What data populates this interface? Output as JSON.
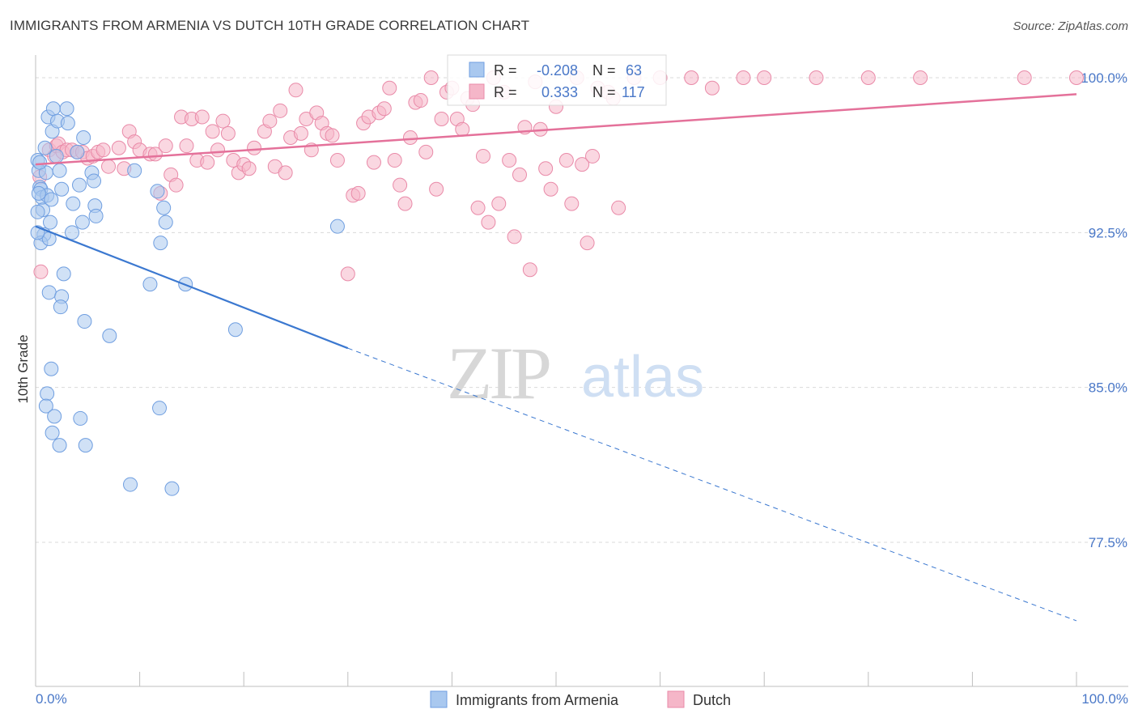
{
  "title": "IMMIGRANTS FROM ARMENIA VS DUTCH 10TH GRADE CORRELATION CHART",
  "source": "Source: ZipAtlas.com",
  "watermark": {
    "zip": "ZIP",
    "atlas": "atlas"
  },
  "colors": {
    "blue_fill": "#a9c8ef",
    "blue_stroke": "#6f9ee0",
    "blue_line": "#3b78d0",
    "pink_fill": "#f5b6c8",
    "pink_stroke": "#e98aa8",
    "pink_line": "#e4719a",
    "grid": "#d9d9d9",
    "tick_text": "#4a78c8"
  },
  "stats_legend": {
    "rows": [
      {
        "r_label": "R =",
        "r_value": "-0.208",
        "n_label": "N =",
        "n_value": "63"
      },
      {
        "r_label": "R =",
        "r_value": "0.333",
        "n_label": "N =",
        "n_value": "117"
      }
    ]
  },
  "chart_data": {
    "type": "scatter",
    "title": "IMMIGRANTS FROM ARMENIA VS DUTCH 10TH GRADE CORRELATION CHART",
    "xlabel": "",
    "ylabel": "10th Grade",
    "xlim": [
      0,
      100
    ],
    "ylim": [
      72.0,
      101.0
    ],
    "x_tick_labels": [
      "0.0%",
      "100.0%"
    ],
    "y_ticks": [
      77.5,
      85.0,
      92.5,
      100.0
    ],
    "y_tick_labels": [
      "77.5%",
      "85.0%",
      "92.5%",
      "100.0%"
    ],
    "grid": true,
    "legend_position": "bottom",
    "series": [
      {
        "name": "Immigrants from Armenia",
        "color": "#a9c8ef",
        "r": -0.208,
        "n": 63,
        "trend": {
          "x": [
            0,
            30
          ],
          "y": [
            92.8,
            86.9
          ],
          "dashed_to": {
            "x": 100,
            "y": 73.7
          }
        },
        "points": [
          [
            0.2,
            96.0
          ],
          [
            0.3,
            95.5
          ],
          [
            0.4,
            94.7
          ],
          [
            0.5,
            94.6
          ],
          [
            0.6,
            94.2
          ],
          [
            0.7,
            93.6
          ],
          [
            0.8,
            92.4
          ],
          [
            0.5,
            92.0
          ],
          [
            0.9,
            96.6
          ],
          [
            1.0,
            95.4
          ],
          [
            1.1,
            94.3
          ],
          [
            1.2,
            98.1
          ],
          [
            1.3,
            92.2
          ],
          [
            1.4,
            93.0
          ],
          [
            1.5,
            94.1
          ],
          [
            1.6,
            97.4
          ],
          [
            1.7,
            98.5
          ],
          [
            2.0,
            96.2
          ],
          [
            2.1,
            97.9
          ],
          [
            2.3,
            95.5
          ],
          [
            2.5,
            94.6
          ],
          [
            3.0,
            98.5
          ],
          [
            3.1,
            97.8
          ],
          [
            3.5,
            92.5
          ],
          [
            3.6,
            93.9
          ],
          [
            4.0,
            96.4
          ],
          [
            4.2,
            94.8
          ],
          [
            4.5,
            93.0
          ],
          [
            4.6,
            97.1
          ],
          [
            5.4,
            95.4
          ],
          [
            5.6,
            95.0
          ],
          [
            5.7,
            93.8
          ],
          [
            5.8,
            93.3
          ],
          [
            9.5,
            95.5
          ],
          [
            11.7,
            94.5
          ],
          [
            12.3,
            93.7
          ],
          [
            12.5,
            93.0
          ],
          [
            12.0,
            92.0
          ],
          [
            14.4,
            90.0
          ],
          [
            11.0,
            90.0
          ],
          [
            2.7,
            90.5
          ],
          [
            1.3,
            89.6
          ],
          [
            2.5,
            89.4
          ],
          [
            2.4,
            88.9
          ],
          [
            4.7,
            88.2
          ],
          [
            7.1,
            87.5
          ],
          [
            19.2,
            87.8
          ],
          [
            1.5,
            85.9
          ],
          [
            1.1,
            84.7
          ],
          [
            1.0,
            84.1
          ],
          [
            1.8,
            83.6
          ],
          [
            4.3,
            83.5
          ],
          [
            1.6,
            82.8
          ],
          [
            2.3,
            82.2
          ],
          [
            4.8,
            82.2
          ],
          [
            11.9,
            84.0
          ],
          [
            9.1,
            80.3
          ],
          [
            13.1,
            80.1
          ],
          [
            29.0,
            92.8
          ],
          [
            0.4,
            95.9
          ],
          [
            0.3,
            94.4
          ],
          [
            0.2,
            92.5
          ],
          [
            0.2,
            93.5
          ]
        ]
      },
      {
        "name": "Dutch",
        "color": "#f5b6c8",
        "r": 0.333,
        "n": 117,
        "trend": {
          "x": [
            0,
            100
          ],
          "y": [
            95.8,
            99.2
          ]
        },
        "points": [
          [
            0.5,
            90.6
          ],
          [
            0.4,
            95.2
          ],
          [
            1.3,
            96.5
          ],
          [
            1.8,
            96.2
          ],
          [
            2.0,
            96.7
          ],
          [
            2.2,
            96.8
          ],
          [
            2.6,
            96.4
          ],
          [
            3.0,
            96.5
          ],
          [
            3.5,
            96.5
          ],
          [
            4.0,
            96.4
          ],
          [
            4.5,
            96.4
          ],
          [
            5.0,
            96.1
          ],
          [
            5.5,
            96.2
          ],
          [
            6.0,
            96.4
          ],
          [
            6.5,
            96.5
          ],
          [
            7.0,
            95.7
          ],
          [
            8.0,
            96.6
          ],
          [
            8.5,
            95.6
          ],
          [
            9.0,
            97.4
          ],
          [
            9.5,
            96.9
          ],
          [
            10.0,
            96.5
          ],
          [
            11.0,
            96.3
          ],
          [
            11.5,
            96.3
          ],
          [
            12.0,
            94.4
          ],
          [
            12.5,
            96.7
          ],
          [
            13.0,
            95.3
          ],
          [
            13.5,
            94.8
          ],
          [
            14.0,
            98.1
          ],
          [
            14.5,
            96.7
          ],
          [
            15.0,
            98.0
          ],
          [
            15.5,
            96.0
          ],
          [
            16.0,
            98.1
          ],
          [
            16.5,
            95.9
          ],
          [
            17.0,
            97.4
          ],
          [
            17.5,
            96.5
          ],
          [
            18.0,
            97.9
          ],
          [
            18.5,
            97.3
          ],
          [
            19.0,
            96.0
          ],
          [
            19.5,
            95.4
          ],
          [
            20.0,
            95.8
          ],
          [
            20.5,
            95.6
          ],
          [
            21.0,
            96.6
          ],
          [
            22.0,
            97.4
          ],
          [
            22.5,
            97.9
          ],
          [
            23.0,
            95.7
          ],
          [
            23.5,
            98.4
          ],
          [
            24.0,
            95.4
          ],
          [
            24.5,
            97.1
          ],
          [
            25.0,
            99.4
          ],
          [
            25.5,
            97.3
          ],
          [
            26.0,
            98.0
          ],
          [
            26.5,
            96.5
          ],
          [
            27.0,
            98.3
          ],
          [
            27.5,
            97.8
          ],
          [
            28.0,
            97.3
          ],
          [
            28.5,
            97.2
          ],
          [
            29.0,
            96.0
          ],
          [
            30.0,
            90.5
          ],
          [
            30.5,
            94.3
          ],
          [
            31.0,
            94.4
          ],
          [
            31.5,
            97.8
          ],
          [
            32.0,
            98.1
          ],
          [
            32.5,
            95.9
          ],
          [
            33.0,
            98.3
          ],
          [
            33.5,
            98.5
          ],
          [
            34.0,
            99.5
          ],
          [
            34.5,
            96.0
          ],
          [
            35.0,
            94.8
          ],
          [
            35.5,
            93.9
          ],
          [
            36.0,
            97.1
          ],
          [
            36.5,
            98.8
          ],
          [
            37.0,
            98.9
          ],
          [
            37.5,
            96.4
          ],
          [
            38.0,
            100.0
          ],
          [
            38.5,
            94.6
          ],
          [
            39.0,
            98.0
          ],
          [
            39.5,
            99.3
          ],
          [
            40.0,
            99.5
          ],
          [
            40.5,
            98.0
          ],
          [
            41.0,
            97.5
          ],
          [
            41.5,
            99.0
          ],
          [
            42.0,
            98.7
          ],
          [
            42.5,
            93.7
          ],
          [
            43.0,
            96.2
          ],
          [
            43.5,
            93.0
          ],
          [
            44.0,
            100.0
          ],
          [
            44.5,
            93.9
          ],
          [
            45.0,
            99.3
          ],
          [
            45.5,
            96.0
          ],
          [
            46.0,
            92.3
          ],
          [
            46.5,
            95.3
          ],
          [
            47.0,
            97.6
          ],
          [
            47.5,
            90.7
          ],
          [
            48.0,
            99.8
          ],
          [
            48.5,
            97.5
          ],
          [
            49.0,
            95.6
          ],
          [
            49.5,
            94.6
          ],
          [
            50.0,
            98.6
          ],
          [
            51.0,
            96.0
          ],
          [
            51.5,
            93.9
          ],
          [
            52.0,
            100.0
          ],
          [
            52.5,
            95.8
          ],
          [
            53.0,
            92.0
          ],
          [
            53.5,
            96.2
          ],
          [
            54.0,
            99.5
          ],
          [
            55.0,
            99.3
          ],
          [
            55.5,
            99.0
          ],
          [
            56.0,
            93.7
          ],
          [
            57.5,
            100.0
          ],
          [
            60.0,
            100.0
          ],
          [
            63.0,
            100.0
          ],
          [
            65.0,
            99.5
          ],
          [
            68.0,
            100.0
          ],
          [
            70.0,
            100.0
          ],
          [
            75.0,
            100.0
          ],
          [
            80.0,
            100.0
          ],
          [
            85.0,
            100.0
          ],
          [
            95.0,
            100.0
          ],
          [
            100.0,
            100.0
          ]
        ]
      }
    ]
  }
}
